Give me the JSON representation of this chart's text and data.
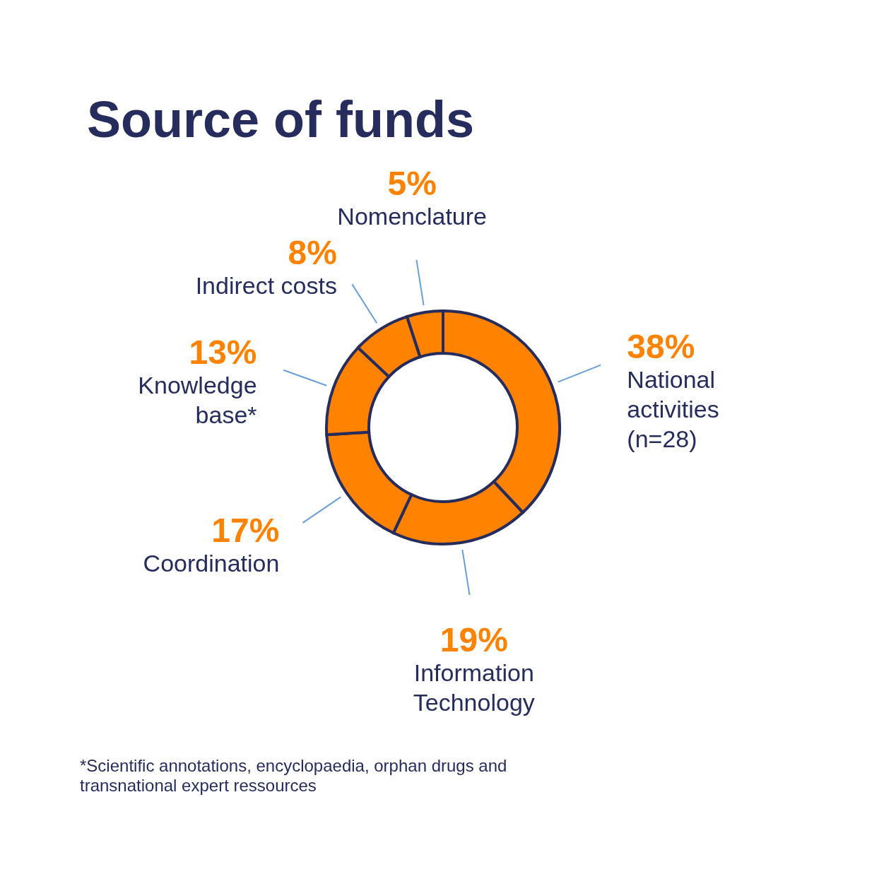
{
  "chart_data": {
    "type": "donut",
    "title": "Source of funds",
    "categories": [
      "National activities (n=28)",
      "Information Technology",
      "Coordination",
      "Knowledge base*",
      "Indirect costs",
      "Nomenclature"
    ],
    "values": [
      38,
      19,
      17,
      13,
      8,
      5
    ],
    "value_labels": [
      "38%",
      "19%",
      "17%",
      "13%",
      "8%",
      "5%"
    ],
    "colors": [
      "#ff8200",
      "#ff8200",
      "#ff8200",
      "#ff8200",
      "#ff8200",
      "#ff8200"
    ],
    "annotations": [
      "*Scientific annotations, encyclopaedia, orphan drugs and transnational expert ressources"
    ]
  }
}
